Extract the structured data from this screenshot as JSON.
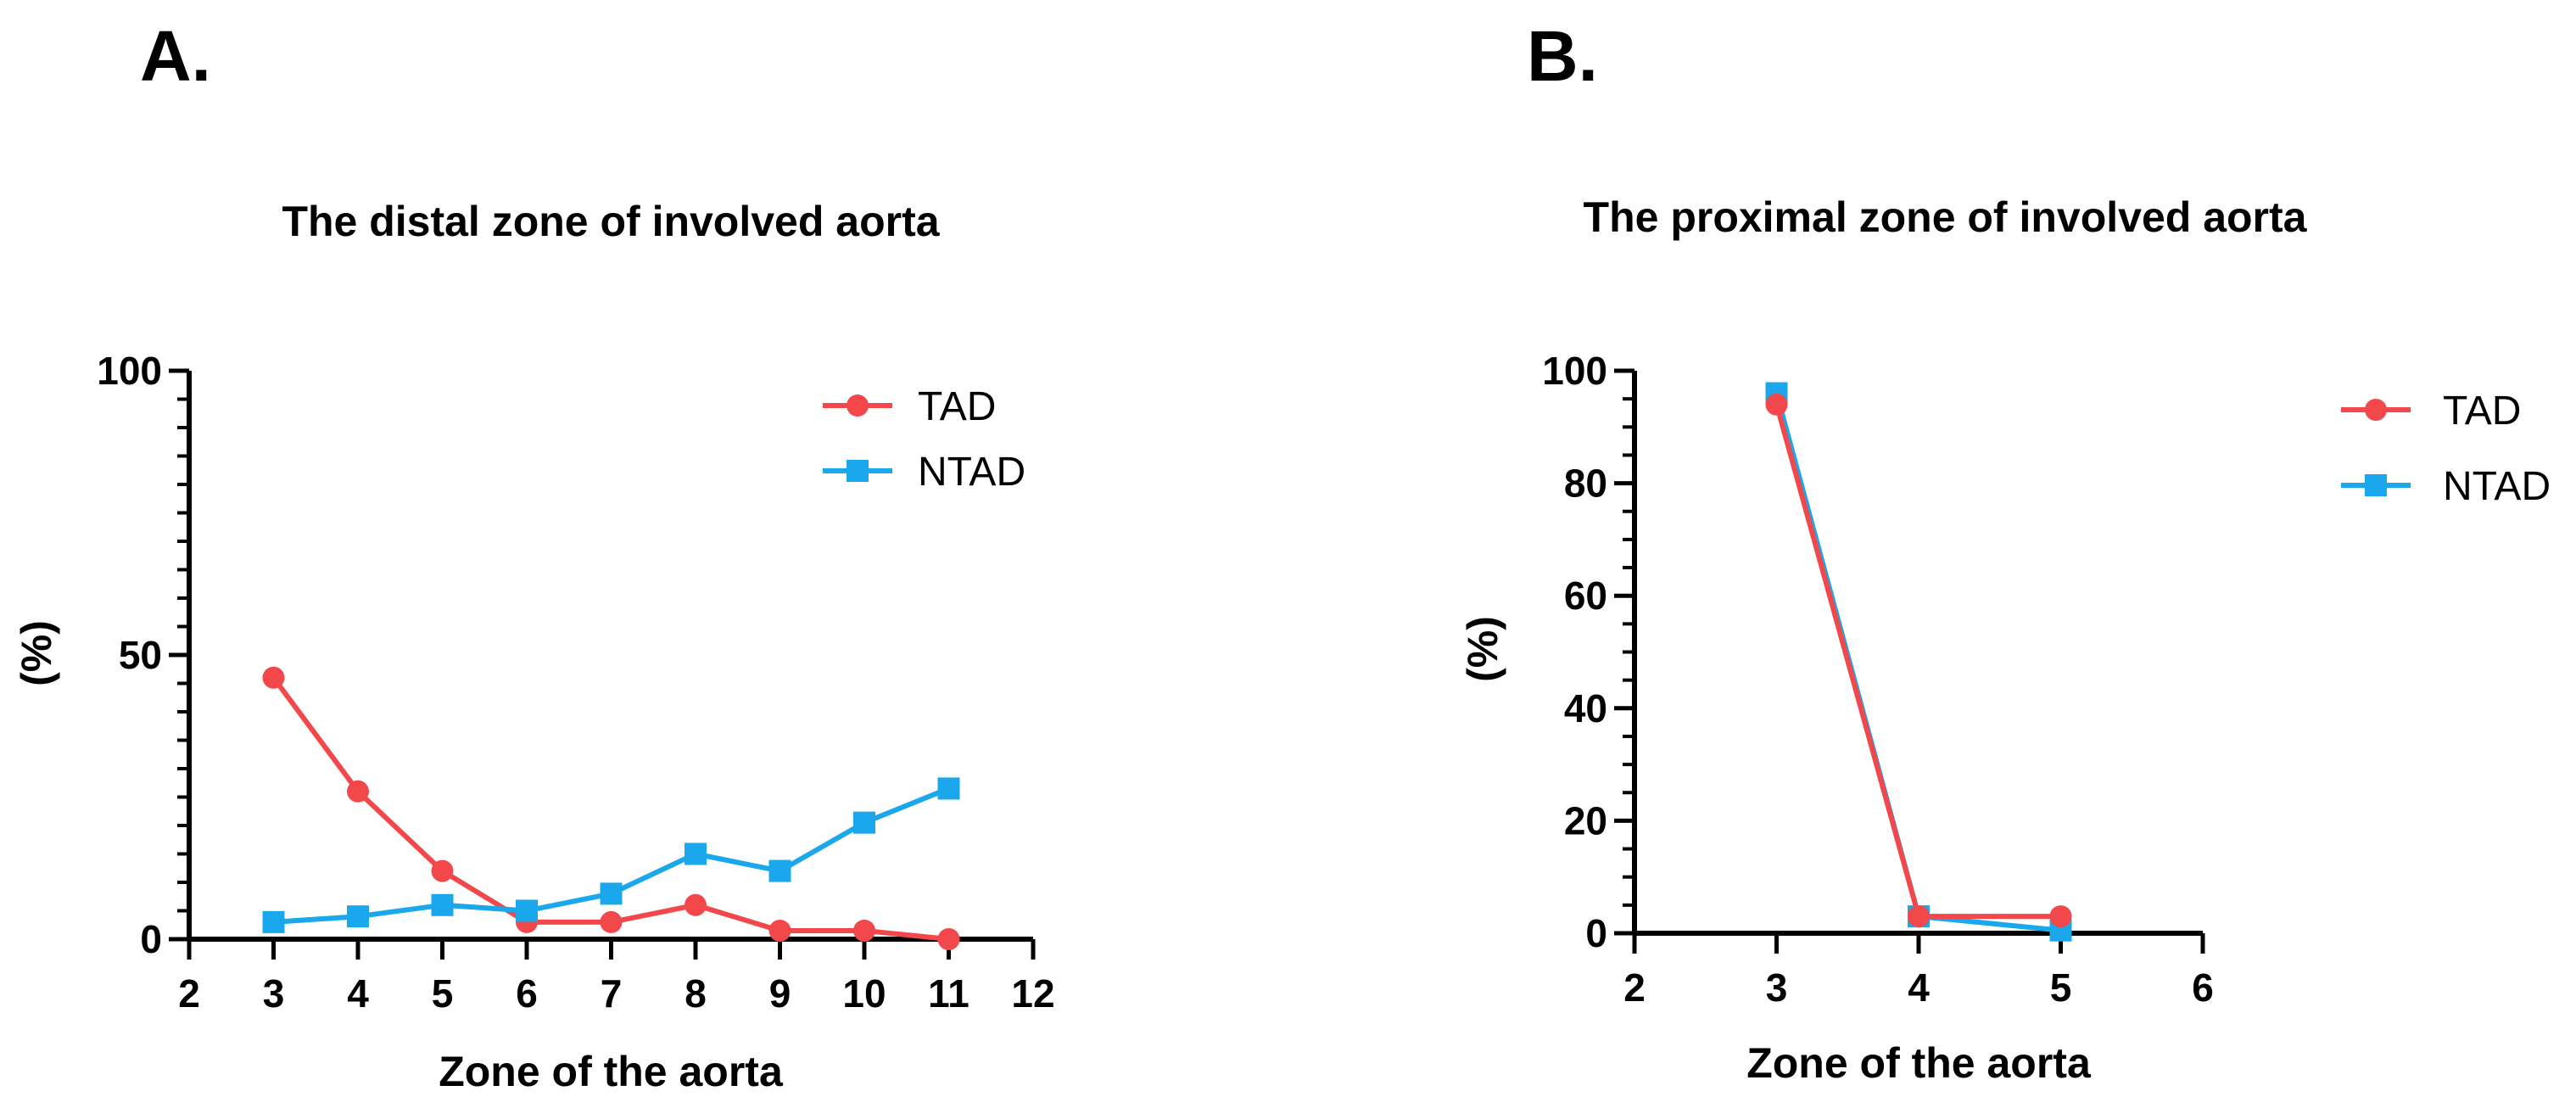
{
  "chart_data": [
    {
      "panel_label": "A.",
      "type": "line",
      "title": "The distal zone of involved aorta",
      "xlabel": "Zone of the aorta",
      "ylabel": "(%)",
      "xlim": [
        2,
        12
      ],
      "ylim": [
        0,
        100
      ],
      "xticks": [
        2,
        3,
        4,
        5,
        6,
        7,
        8,
        9,
        10,
        11,
        12
      ],
      "yticks": [
        0,
        50,
        100
      ],
      "y_minor_step": 5,
      "grid": false,
      "legend_position": "top-right",
      "series": [
        {
          "name": "TAD",
          "color": "#f2484b",
          "marker": "circle",
          "x": [
            3,
            4,
            5,
            6,
            7,
            8,
            9,
            10,
            11
          ],
          "values": [
            46,
            26,
            12,
            3,
            3,
            6,
            1.5,
            1.5,
            0
          ]
        },
        {
          "name": "NTAD",
          "color": "#1aa7ec",
          "marker": "square",
          "x": [
            3,
            4,
            5,
            6,
            7,
            8,
            9,
            10,
            11
          ],
          "values": [
            3,
            4,
            6,
            5,
            8,
            15,
            12,
            20.5,
            26.5
          ]
        }
      ]
    },
    {
      "panel_label": "B.",
      "type": "line",
      "title": "The proximal zone of involved aorta",
      "xlabel": "Zone of the aorta",
      "ylabel": "(%)",
      "xlim": [
        2,
        6
      ],
      "ylim": [
        0,
        100
      ],
      "xticks": [
        2,
        3,
        4,
        5,
        6
      ],
      "yticks": [
        0,
        20,
        40,
        60,
        80,
        100
      ],
      "y_minor_step": 5,
      "grid": false,
      "legend_position": "top-right",
      "series": [
        {
          "name": "NTAD",
          "color": "#1aa7ec",
          "marker": "square",
          "x": [
            3,
            4,
            5
          ],
          "values": [
            96,
            3,
            0.5
          ]
        },
        {
          "name": "TAD",
          "color": "#f2484b",
          "marker": "circle",
          "x": [
            3,
            4,
            5
          ],
          "values": [
            94,
            3,
            3
          ]
        }
      ]
    }
  ]
}
